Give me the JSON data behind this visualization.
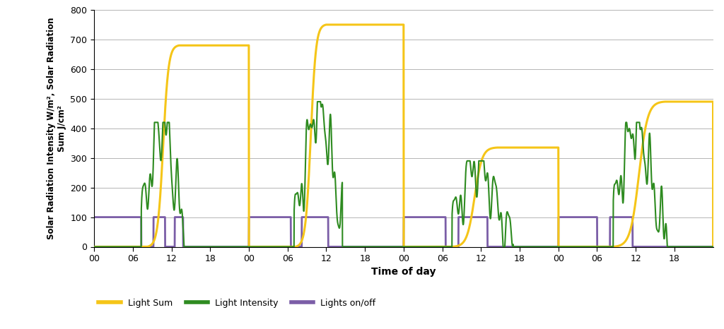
{
  "xlabel": "Time of day",
  "ylabel": "Solar Radiation Intensity W/m², Solar Radiation\nSum J/cm²",
  "ylim": [
    0,
    800
  ],
  "yticks": [
    0,
    100,
    200,
    300,
    400,
    500,
    600,
    700,
    800
  ],
  "xlim": [
    0,
    96
  ],
  "xtick_positions": [
    0,
    6,
    12,
    18,
    24,
    30,
    36,
    42,
    48,
    54,
    60,
    66,
    72,
    78,
    84,
    90
  ],
  "xtick_labels": [
    "00",
    "06",
    "12",
    "18",
    "00",
    "06",
    "12",
    "18",
    "00",
    "06",
    "12",
    "18",
    "00",
    "06",
    "12",
    "18"
  ],
  "colors": {
    "light_sum": "#F5C518",
    "light_intensity": "#2E8B20",
    "lights_onoff": "#7B5EA7",
    "background": "#FFFFFF",
    "grid": "#AAAAAA"
  },
  "legend": {
    "light_sum": "Light Sum",
    "light_intensity": "Light Intensity",
    "lights_onoff": "Lights on/off"
  },
  "light_sum_segments": [
    {
      "t_start": 0,
      "t_rise_start": 8.2,
      "t_rise_end": 13.2,
      "peak": 680,
      "t_end": 24
    },
    {
      "t_start": 24,
      "t_rise_start": 31.2,
      "t_rise_end": 36.0,
      "peak": 750,
      "t_end": 48
    },
    {
      "t_start": 48,
      "t_rise_start": 55.5,
      "t_rise_end": 62.5,
      "peak": 335,
      "t_end": 72
    },
    {
      "t_start": 72,
      "t_rise_start": 80.5,
      "t_rise_end": 88.5,
      "peak": 490,
      "t_end": 96
    }
  ],
  "lights_onoff_intervals": [
    [
      0,
      7.3
    ],
    [
      9.2,
      11.0
    ],
    [
      12.5,
      13.8
    ],
    [
      24,
      30.5
    ],
    [
      32.2,
      36.3
    ],
    [
      48,
      54.5
    ],
    [
      56.5,
      61.0
    ],
    [
      72,
      78.0
    ],
    [
      80.0,
      83.5
    ]
  ]
}
